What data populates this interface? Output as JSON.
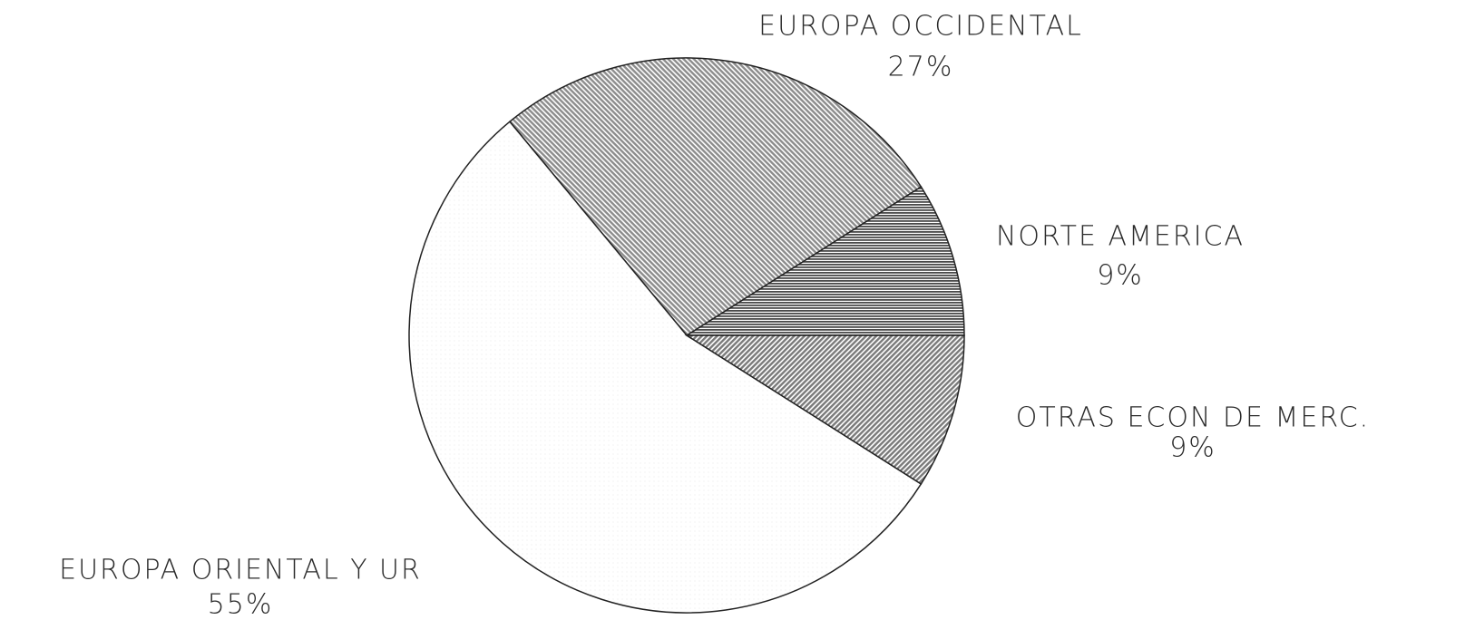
{
  "chart_data": {
    "type": "pie",
    "categories": [
      "NORTE AMERICA",
      "EUROPA OCCIDENTAL",
      "EUROPA ORIENTAL Y UR",
      "OTRAS ECON DE MERC."
    ],
    "values": [
      9,
      27,
      55,
      9
    ],
    "value_labels": [
      "9%",
      "27%",
      "55%",
      "9%"
    ],
    "colors": [
      "#4a4a4a",
      "#8c8c8c",
      "#ececec",
      "#7a7a7a"
    ]
  }
}
